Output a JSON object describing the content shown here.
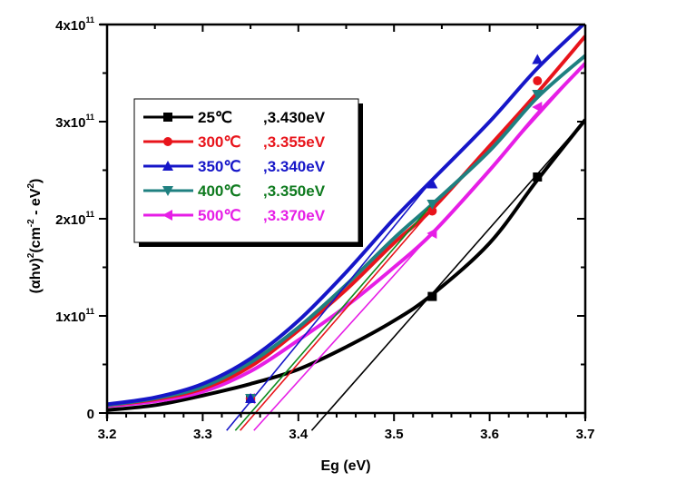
{
  "chart_data": {
    "type": "line",
    "title": "",
    "xlabel": "Eg (eV)",
    "ylabel": "(αhν)²(cm⁻² - eV²)",
    "ylabel_parts": {
      "base": "(αhν)",
      "sup1": "2",
      "mid": "(cm",
      "sup2": "-2",
      "mid2": " - eV",
      "sup3": "2",
      "end": ")"
    },
    "xlim": [
      3.2,
      3.7
    ],
    "ylim": [
      0,
      4
    ],
    "y_unit_multiplier": "x10",
    "y_unit_exponent": "11",
    "x_ticks": [
      "3.2",
      "3.3",
      "3.4",
      "3.5",
      "3.6",
      "3.7"
    ],
    "x_tick_values": [
      3.2,
      3.3,
      3.4,
      3.5,
      3.6,
      3.7
    ],
    "y_ticks": [
      {
        "value": 0,
        "base": "0",
        "exp": ""
      },
      {
        "value": 1,
        "base": "1x10",
        "exp": "11"
      },
      {
        "value": 2,
        "base": "2x10",
        "exp": "11"
      },
      {
        "value": 3,
        "base": "3x10",
        "exp": "11"
      },
      {
        "value": 4,
        "base": "4x10",
        "exp": "11"
      }
    ],
    "grid": false,
    "legend_position": "top-left",
    "x": [
      3.2,
      3.25,
      3.3,
      3.35,
      3.4,
      3.45,
      3.5,
      3.54,
      3.6,
      3.65,
      3.7
    ],
    "series": [
      {
        "name": "25℃",
        "label_temp": "25℃",
        "label_gap": ",3.430eV",
        "line_color": "#000000",
        "text_color": "#000000",
        "marker": "square",
        "values": [
          0.03,
          0.08,
          0.18,
          0.3,
          0.45,
          0.68,
          0.95,
          1.22,
          1.75,
          2.4,
          3.02
        ],
        "markers_at": [
          3.35,
          3.54,
          3.65
        ],
        "marker_values": [
          0.15,
          1.2,
          2.43
        ],
        "tangent": {
          "intercept": 3.43,
          "x_end": 3.7,
          "y_end": 3.02
        }
      },
      {
        "name": "300℃",
        "label_temp": "300℃",
        "label_gap": ",3.355eV",
        "line_color": "#e8141b",
        "text_color": "#e8141b",
        "marker": "circle",
        "values": [
          0.08,
          0.14,
          0.25,
          0.48,
          0.85,
          1.27,
          1.75,
          2.1,
          2.75,
          3.3,
          3.88
        ],
        "markers_at": [
          3.35,
          3.54,
          3.65
        ],
        "marker_values": [
          0.15,
          2.08,
          3.42
        ],
        "tangent": {
          "intercept": 3.355,
          "x_end": 3.54,
          "y_end": 2.1
        }
      },
      {
        "name": "350℃",
        "label_temp": "350℃",
        "label_gap": ",3.340eV",
        "line_color": "#1616c8",
        "text_color": "#1616c8",
        "marker": "triangle-up",
        "values": [
          0.09,
          0.16,
          0.3,
          0.56,
          0.95,
          1.45,
          2.0,
          2.4,
          3.0,
          3.55,
          4.02
        ],
        "markers_at": [
          3.35,
          3.54,
          3.65
        ],
        "marker_values": [
          0.15,
          2.36,
          3.64
        ],
        "tangent": {
          "intercept": 3.34,
          "x_end": 3.54,
          "y_end": 2.4
        }
      },
      {
        "name": "400℃",
        "label_temp": "400℃",
        "label_gap": ",3.350eV",
        "line_color": "#1f8080",
        "text_color": "#0e7a1e",
        "tangent_color": "#0e8a1e",
        "marker": "triangle-down",
        "values": [
          0.08,
          0.15,
          0.27,
          0.52,
          0.88,
          1.32,
          1.8,
          2.15,
          2.7,
          3.25,
          3.68
        ],
        "markers_at": [
          3.35,
          3.54,
          3.65
        ],
        "marker_values": [
          0.15,
          2.15,
          3.28
        ],
        "tangent": {
          "intercept": 3.35,
          "x_end": 3.54,
          "y_end": 2.15
        }
      },
      {
        "name": "500℃",
        "label_temp": "500℃",
        "label_gap": ",3.370eV",
        "line_color": "#e61ee6",
        "text_color": "#e61ee6",
        "marker": "triangle-left",
        "values": [
          0.07,
          0.12,
          0.22,
          0.43,
          0.75,
          1.1,
          1.5,
          1.85,
          2.5,
          3.08,
          3.6
        ],
        "markers_at": [
          3.35,
          3.54,
          3.65
        ],
        "marker_values": [
          0.15,
          1.85,
          3.15
        ],
        "tangent": {
          "intercept": 3.37,
          "x_end": 3.7,
          "y_end": 3.6
        }
      }
    ]
  }
}
